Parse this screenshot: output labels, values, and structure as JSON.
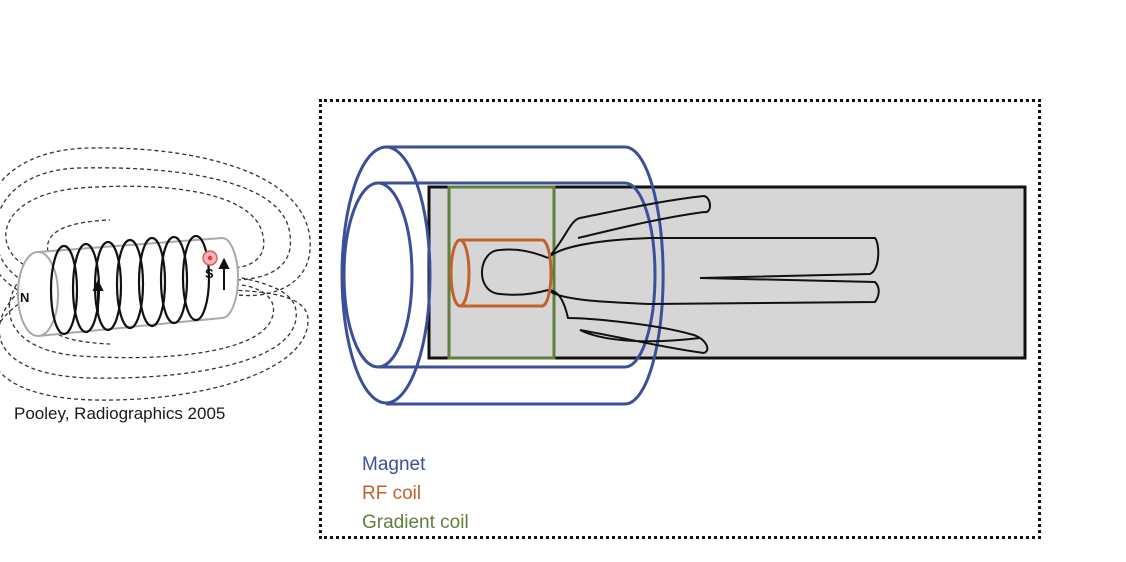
{
  "caption": "Pooley, Radiographics 2005",
  "solenoid": {
    "north_label": "N",
    "south_label": "S"
  },
  "legend": {
    "magnet": "Magnet",
    "rf_coil": "RF coil",
    "gradient_coil": "Gradient coil"
  },
  "colors": {
    "magnet": "#3c4f9a",
    "rf_coil": "#c0622a",
    "gradient_coil": "#5f7f3c",
    "table": "#d6d6d6",
    "outline": "#111111"
  }
}
